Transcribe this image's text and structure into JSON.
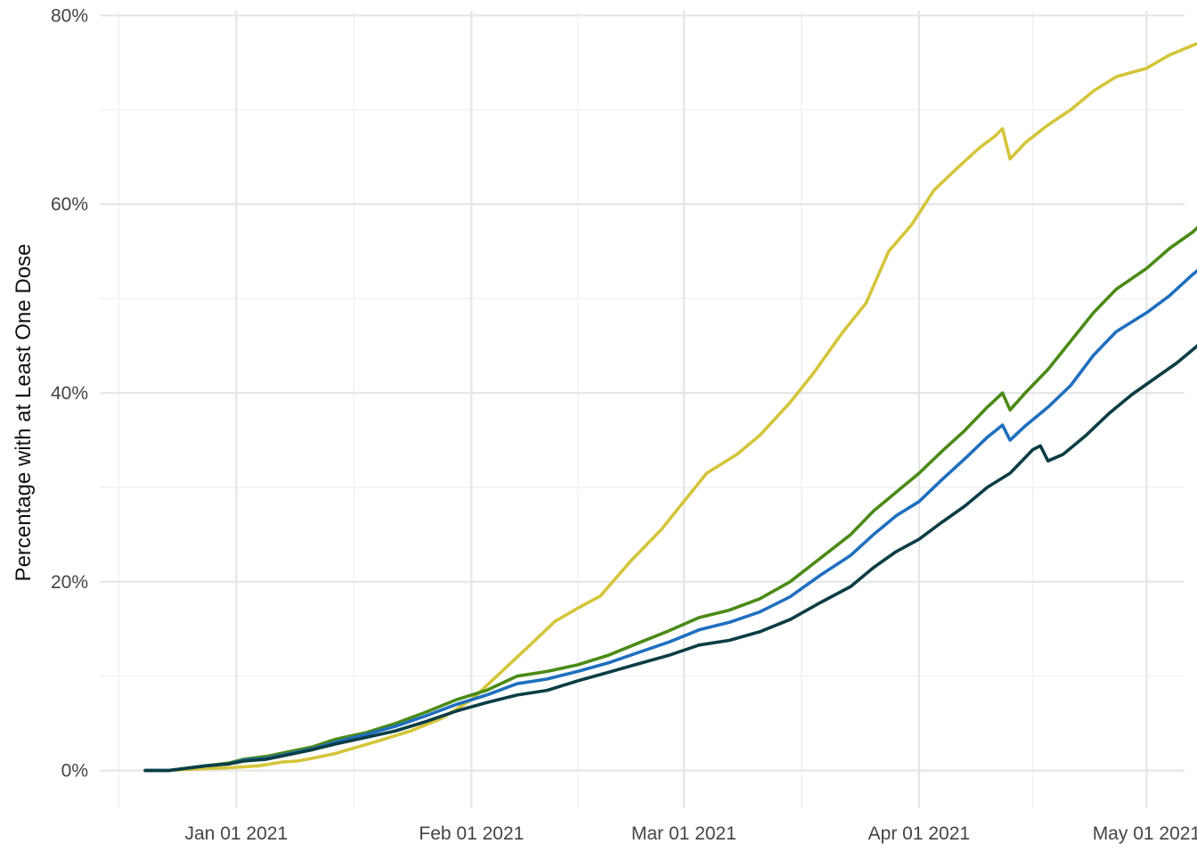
{
  "chart_data": {
    "type": "line",
    "title": "",
    "xlabel": "",
    "ylabel": "Percentage with at Least One Dose",
    "x_type": "date",
    "xlim": [
      "2020-12-14",
      "2021-05-06"
    ],
    "ylim": [
      -0.04,
      0.805
    ],
    "y_format": "percent",
    "grid": true,
    "legend": "none",
    "x_ticks": [
      {
        "date": "2021-01-01",
        "label": "Jan 01 2021"
      },
      {
        "date": "2021-02-01",
        "label": "Feb 01 2021"
      },
      {
        "date": "2021-03-01",
        "label": "Mar 01 2021"
      },
      {
        "date": "2021-04-01",
        "label": "Apr 01 2021"
      },
      {
        "date": "2021-05-01",
        "label": "May 01 2021"
      }
    ],
    "y_ticks": [
      {
        "value": 0.0,
        "label": "0%"
      },
      {
        "value": 0.2,
        "label": "20%"
      },
      {
        "value": 0.4,
        "label": "40%"
      },
      {
        "value": 0.6,
        "label": "60%"
      },
      {
        "value": 0.8,
        "label": "80%"
      }
    ],
    "series": [
      {
        "color": "#d4c53a",
        "points": [
          [
            "2020-12-20",
            0.0
          ],
          [
            "2020-12-23",
            0.0
          ],
          [
            "2020-12-25",
            0.001
          ],
          [
            "2020-12-28",
            0.002
          ],
          [
            "2020-12-31",
            0.003
          ],
          [
            "2021-01-04",
            0.005
          ],
          [
            "2021-01-07",
            0.009
          ],
          [
            "2021-01-09",
            0.01
          ],
          [
            "2021-01-11",
            0.013
          ],
          [
            "2021-01-14",
            0.018
          ],
          [
            "2021-01-17",
            0.025
          ],
          [
            "2021-01-20",
            0.032
          ],
          [
            "2021-01-24",
            0.042
          ],
          [
            "2021-01-28",
            0.055
          ],
          [
            "2021-02-01",
            0.075
          ],
          [
            "2021-02-05",
            0.105
          ],
          [
            "2021-02-09",
            0.135
          ],
          [
            "2021-02-12",
            0.158
          ],
          [
            "2021-02-15",
            0.172
          ],
          [
            "2021-02-18",
            0.185
          ],
          [
            "2021-02-22",
            0.222
          ],
          [
            "2021-02-26",
            0.255
          ],
          [
            "2021-03-01",
            0.285
          ],
          [
            "2021-03-04",
            0.315
          ],
          [
            "2021-03-08",
            0.335
          ],
          [
            "2021-03-11",
            0.355
          ],
          [
            "2021-03-15",
            0.39
          ],
          [
            "2021-03-18",
            0.42
          ],
          [
            "2021-03-22",
            0.465
          ],
          [
            "2021-03-25",
            0.495
          ],
          [
            "2021-03-28",
            0.55
          ],
          [
            "2021-03-31",
            0.578
          ],
          [
            "2021-04-03",
            0.615
          ],
          [
            "2021-04-06",
            0.638
          ],
          [
            "2021-04-09",
            0.66
          ],
          [
            "2021-04-11",
            0.672
          ],
          [
            "2021-04-12",
            0.68
          ],
          [
            "2021-04-13",
            0.648
          ],
          [
            "2021-04-15",
            0.665
          ],
          [
            "2021-04-18",
            0.684
          ],
          [
            "2021-04-21",
            0.7
          ],
          [
            "2021-04-24",
            0.72
          ],
          [
            "2021-04-27",
            0.735
          ],
          [
            "2021-05-01",
            0.744
          ],
          [
            "2021-05-04",
            0.758
          ],
          [
            "2021-05-07",
            0.768
          ],
          [
            "2021-05-10",
            0.778
          ]
        ]
      },
      {
        "color": "#4a8a16",
        "points": [
          [
            "2020-12-20",
            0.0
          ],
          [
            "2020-12-23",
            0.0
          ],
          [
            "2020-12-25",
            0.002
          ],
          [
            "2020-12-28",
            0.005
          ],
          [
            "2020-12-31",
            0.008
          ],
          [
            "2021-01-02",
            0.012
          ],
          [
            "2021-01-05",
            0.015
          ],
          [
            "2021-01-08",
            0.02
          ],
          [
            "2021-01-11",
            0.025
          ],
          [
            "2021-01-14",
            0.033
          ],
          [
            "2021-01-18",
            0.04
          ],
          [
            "2021-01-22",
            0.05
          ],
          [
            "2021-01-26",
            0.062
          ],
          [
            "2021-01-30",
            0.075
          ],
          [
            "2021-02-03",
            0.085
          ],
          [
            "2021-02-07",
            0.1
          ],
          [
            "2021-02-11",
            0.105
          ],
          [
            "2021-02-15",
            0.112
          ],
          [
            "2021-02-19",
            0.122
          ],
          [
            "2021-02-23",
            0.135
          ],
          [
            "2021-02-27",
            0.148
          ],
          [
            "2021-03-03",
            0.162
          ],
          [
            "2021-03-07",
            0.17
          ],
          [
            "2021-03-11",
            0.182
          ],
          [
            "2021-03-15",
            0.2
          ],
          [
            "2021-03-19",
            0.225
          ],
          [
            "2021-03-23",
            0.25
          ],
          [
            "2021-03-26",
            0.275
          ],
          [
            "2021-03-29",
            0.295
          ],
          [
            "2021-04-01",
            0.315
          ],
          [
            "2021-04-04",
            0.338
          ],
          [
            "2021-04-07",
            0.36
          ],
          [
            "2021-04-10",
            0.385
          ],
          [
            "2021-04-12",
            0.4
          ],
          [
            "2021-04-13",
            0.382
          ],
          [
            "2021-04-15",
            0.4
          ],
          [
            "2021-04-18",
            0.425
          ],
          [
            "2021-04-21",
            0.455
          ],
          [
            "2021-04-24",
            0.485
          ],
          [
            "2021-04-27",
            0.51
          ],
          [
            "2021-05-01",
            0.532
          ],
          [
            "2021-05-04",
            0.553
          ],
          [
            "2021-05-07",
            0.57
          ],
          [
            "2021-05-10",
            0.592
          ]
        ]
      },
      {
        "color": "#1f6fbf",
        "points": [
          [
            "2020-12-20",
            0.0
          ],
          [
            "2020-12-23",
            0.0
          ],
          [
            "2020-12-25",
            0.002
          ],
          [
            "2020-12-28",
            0.005
          ],
          [
            "2020-12-31",
            0.007
          ],
          [
            "2021-01-02",
            0.011
          ],
          [
            "2021-01-05",
            0.013
          ],
          [
            "2021-01-08",
            0.018
          ],
          [
            "2021-01-11",
            0.023
          ],
          [
            "2021-01-14",
            0.03
          ],
          [
            "2021-01-18",
            0.038
          ],
          [
            "2021-01-22",
            0.047
          ],
          [
            "2021-01-26",
            0.058
          ],
          [
            "2021-01-30",
            0.07
          ],
          [
            "2021-02-03",
            0.08
          ],
          [
            "2021-02-07",
            0.092
          ],
          [
            "2021-02-11",
            0.097
          ],
          [
            "2021-02-15",
            0.105
          ],
          [
            "2021-02-19",
            0.114
          ],
          [
            "2021-02-23",
            0.125
          ],
          [
            "2021-02-27",
            0.136
          ],
          [
            "2021-03-03",
            0.149
          ],
          [
            "2021-03-07",
            0.157
          ],
          [
            "2021-03-11",
            0.168
          ],
          [
            "2021-03-15",
            0.184
          ],
          [
            "2021-03-19",
            0.207
          ],
          [
            "2021-03-23",
            0.228
          ],
          [
            "2021-03-26",
            0.25
          ],
          [
            "2021-03-29",
            0.27
          ],
          [
            "2021-04-01",
            0.285
          ],
          [
            "2021-04-04",
            0.308
          ],
          [
            "2021-04-07",
            0.33
          ],
          [
            "2021-04-10",
            0.353
          ],
          [
            "2021-04-12",
            0.366
          ],
          [
            "2021-04-13",
            0.35
          ],
          [
            "2021-04-15",
            0.365
          ],
          [
            "2021-04-18",
            0.385
          ],
          [
            "2021-04-21",
            0.408
          ],
          [
            "2021-04-24",
            0.44
          ],
          [
            "2021-04-27",
            0.465
          ],
          [
            "2021-05-01",
            0.485
          ],
          [
            "2021-05-04",
            0.503
          ],
          [
            "2021-05-07",
            0.525
          ],
          [
            "2021-05-10",
            0.545
          ]
        ]
      },
      {
        "color": "#0b3d45",
        "points": [
          [
            "2020-12-20",
            0.0
          ],
          [
            "2020-12-23",
            0.0
          ],
          [
            "2020-12-25",
            0.002
          ],
          [
            "2020-12-28",
            0.005
          ],
          [
            "2020-12-31",
            0.007
          ],
          [
            "2021-01-02",
            0.01
          ],
          [
            "2021-01-05",
            0.012
          ],
          [
            "2021-01-08",
            0.017
          ],
          [
            "2021-01-11",
            0.022
          ],
          [
            "2021-01-14",
            0.028
          ],
          [
            "2021-01-18",
            0.035
          ],
          [
            "2021-01-22",
            0.042
          ],
          [
            "2021-01-26",
            0.052
          ],
          [
            "2021-01-30",
            0.063
          ],
          [
            "2021-02-03",
            0.072
          ],
          [
            "2021-02-07",
            0.08
          ],
          [
            "2021-02-11",
            0.085
          ],
          [
            "2021-02-15",
            0.095
          ],
          [
            "2021-02-19",
            0.104
          ],
          [
            "2021-02-23",
            0.113
          ],
          [
            "2021-02-27",
            0.122
          ],
          [
            "2021-03-03",
            0.133
          ],
          [
            "2021-03-07",
            0.138
          ],
          [
            "2021-03-11",
            0.147
          ],
          [
            "2021-03-15",
            0.16
          ],
          [
            "2021-03-19",
            0.178
          ],
          [
            "2021-03-23",
            0.195
          ],
          [
            "2021-03-26",
            0.215
          ],
          [
            "2021-03-29",
            0.232
          ],
          [
            "2021-04-01",
            0.245
          ],
          [
            "2021-04-04",
            0.263
          ],
          [
            "2021-04-07",
            0.28
          ],
          [
            "2021-04-10",
            0.3
          ],
          [
            "2021-04-13",
            0.315
          ],
          [
            "2021-04-16",
            0.34
          ],
          [
            "2021-04-17",
            0.344
          ],
          [
            "2021-04-18",
            0.328
          ],
          [
            "2021-04-20",
            0.335
          ],
          [
            "2021-04-23",
            0.355
          ],
          [
            "2021-04-26",
            0.378
          ],
          [
            "2021-04-29",
            0.398
          ],
          [
            "2021-05-02",
            0.415
          ],
          [
            "2021-05-05",
            0.432
          ],
          [
            "2021-05-08",
            0.452
          ],
          [
            "2021-05-10",
            0.468
          ]
        ]
      }
    ]
  }
}
